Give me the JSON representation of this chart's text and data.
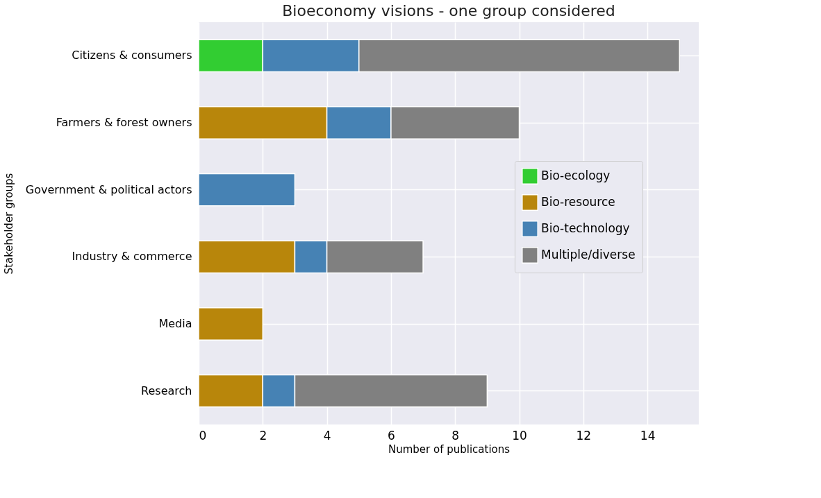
{
  "chart_data": {
    "type": "bar",
    "orientation": "horizontal",
    "stacked": true,
    "title": "Bioeconomy visions - one group considered",
    "xlabel": "Number of publications",
    "ylabel": "Stakeholder groups",
    "categories": [
      "Citizens & consumers",
      "Farmers & forest owners",
      "Government & political actors",
      "Industry & commerce",
      "Media",
      "Research"
    ],
    "series": [
      {
        "name": "Bio-ecology",
        "color": "#32cd32",
        "values": [
          2,
          null,
          null,
          null,
          null,
          null
        ]
      },
      {
        "name": "Bio-resource",
        "color": "#b8860b",
        "values": [
          null,
          4,
          null,
          3,
          2,
          2
        ]
      },
      {
        "name": "Bio-technology",
        "color": "#4682b4",
        "values": [
          3,
          2,
          3,
          1,
          null,
          1
        ]
      },
      {
        "name": "Multiple/diverse",
        "color": "#808080",
        "values": [
          10,
          4,
          null,
          3,
          null,
          6
        ]
      }
    ],
    "xlim": [
      0,
      15.6
    ],
    "xticks": [
      0,
      2,
      4,
      6,
      8,
      10,
      12,
      14
    ],
    "grid": true,
    "legend": "right"
  }
}
